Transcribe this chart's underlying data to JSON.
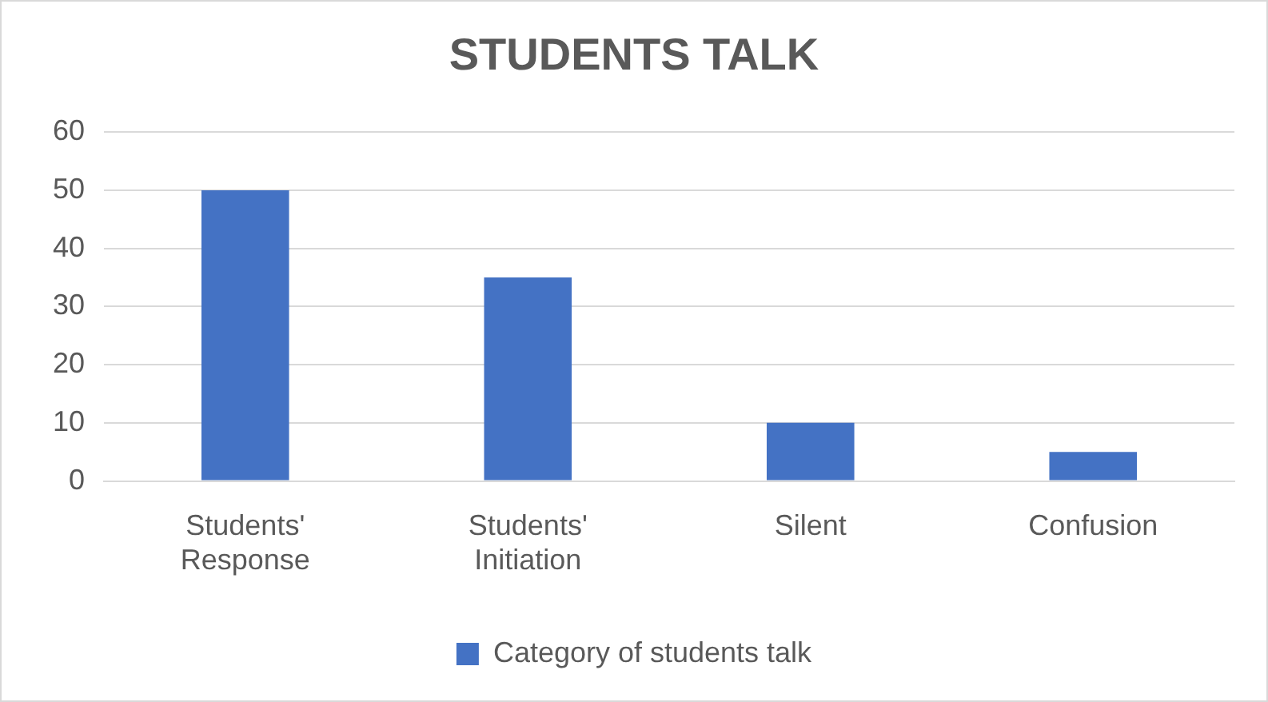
{
  "chart_data": {
    "type": "bar",
    "title": "STUDENTS TALK",
    "categories": [
      "Students' Response",
      "Students' Initiation",
      "Silent",
      "Confusion"
    ],
    "series": [
      {
        "name": "Category of students talk",
        "color": "#4472c4",
        "values": [
          50,
          35,
          10,
          5
        ]
      }
    ],
    "ylim": [
      0,
      60
    ],
    "yticks": [
      0,
      10,
      20,
      30,
      40,
      50,
      60
    ],
    "grid": "y",
    "legend": "bottom"
  }
}
